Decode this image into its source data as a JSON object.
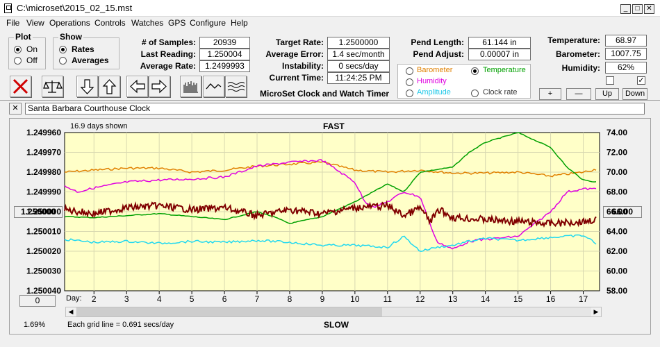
{
  "window": {
    "title": "C:\\microset\\2015_02_15.mst",
    "min": "_",
    "max": "□",
    "close": "✕"
  },
  "menu": [
    "File",
    "View",
    "Operations",
    "Controls",
    "Watches",
    "GPS",
    "Configure",
    "Help"
  ],
  "plot": {
    "title": "Plot",
    "on": "On",
    "off": "Off"
  },
  "show": {
    "title": "Show",
    "rates": "Rates",
    "averages": "Averages"
  },
  "stats": {
    "samples_label": "# of Samples:",
    "samples": "20939",
    "last_label": "Last Reading:",
    "last": "1.250004",
    "avg_label": "Average Rate:",
    "avg": "1.2499993",
    "target_label": "Target Rate:",
    "target": "1.2500000",
    "avgerr_label": "Average Error:",
    "avgerr": "1.4 sec/month",
    "instab_label": "Instability:",
    "instab": "0 secs/day",
    "time_label": "Current Time:",
    "time": "11:24:25 PM",
    "pendlen_label": "Pend Length:",
    "pendlen": "61.144 in",
    "pendadj_label": "Pend Adjust:",
    "pendadj": "0.00007 in",
    "temp_label": "Temperature:",
    "temp": "68.97",
    "baro_label": "Barometer:",
    "baro": "1007.75",
    "hum_label": "Humidity:",
    "hum": "62%"
  },
  "app_name": "MicroSet Clock and Watch Timer",
  "sensors": {
    "barometer": "Barometer",
    "temperature": "Temperature",
    "humidity": "Humidity",
    "amplitude": "Amplitude",
    "clockrate": "Clock rate"
  },
  "adjust": {
    "plus": "+",
    "minus": "—",
    "up": "Up",
    "down": "Down"
  },
  "watch_name": "Santa Barbara Courthouse Clock",
  "clear_btn": "✕",
  "chart_labels": {
    "days_shown": "16.9 days shown",
    "fast": "FAST",
    "slow": "SLOW",
    "grid_note": "Each grid line = 0.691 secs/day",
    "pct": "1.69%",
    "day_label": "Day:",
    "left_btn": "1.250000",
    "right_btn": "66.00",
    "zero_btn": "0"
  },
  "colors": {
    "barometer": "#e08000",
    "temperature": "#00a000",
    "humidity": "#e000e0",
    "amplitude": "#20d8f0",
    "rate": "#800000",
    "plot_bg": "#ffffc8"
  },
  "chart_data": {
    "type": "line",
    "left_axis": {
      "ticks": [
        "1.249960",
        "1.249970",
        "1.249980",
        "1.249990",
        "1.250000",
        "1.250010",
        "1.250020",
        "1.250030",
        "1.250040"
      ],
      "ylim": [
        1.24996,
        1.25004
      ],
      "inverted": true
    },
    "right_axis": {
      "ticks": [
        "74.00",
        "72.00",
        "70.00",
        "68.00",
        "66.00",
        "64.00",
        "62.00",
        "60.00",
        "58.00"
      ],
      "ylim": [
        58,
        74
      ]
    },
    "x_ticks": [
      2,
      3,
      4,
      5,
      6,
      7,
      8,
      9,
      10,
      11,
      12,
      13,
      14,
      15,
      16,
      17
    ],
    "xlim": [
      1.1,
      17.5
    ],
    "series": [
      {
        "key": "barometer",
        "color": "#e08000",
        "x": [
          1.1,
          2,
          3,
          4,
          5,
          6,
          7,
          8,
          9,
          10,
          11,
          12,
          13,
          14,
          15,
          16,
          17,
          17.4
        ],
        "y": [
          70.0,
          70.2,
          70.4,
          70.4,
          70.0,
          70.2,
          70.6,
          70.8,
          71.0,
          70.2,
          70.0,
          70.2,
          69.9,
          69.9,
          70.0,
          69.6,
          70.0,
          70.3
        ]
      },
      {
        "key": "temperature",
        "color": "#00a000",
        "x": [
          1.1,
          2,
          3,
          4,
          5,
          6,
          7,
          7.5,
          8,
          9,
          10,
          11,
          11.5,
          12,
          13,
          13.5,
          14,
          15,
          16,
          16.5,
          17,
          17.4
        ],
        "y": [
          65.5,
          65.4,
          65.6,
          65.8,
          65.5,
          65.2,
          66.0,
          65.5,
          64.8,
          65.5,
          67.0,
          68.8,
          68.0,
          70.0,
          70.5,
          72.0,
          73.0,
          74.0,
          72.5,
          70.5,
          69.2,
          69.0
        ]
      },
      {
        "key": "humidity",
        "color": "#e000e0",
        "x": [
          1.1,
          1.5,
          2,
          3,
          4,
          5,
          6,
          7,
          8,
          9,
          10,
          10.3,
          10.6,
          11,
          11.5,
          12,
          12.5,
          13,
          13.5,
          14,
          15,
          16,
          16.5,
          17,
          17.4
        ],
        "y": [
          68.6,
          68.0,
          68.4,
          69.0,
          69.2,
          69.3,
          69.5,
          70.6,
          71.0,
          71.2,
          69.0,
          67.0,
          66.5,
          67.0,
          68.0,
          67.5,
          63.0,
          62.2,
          63.0,
          63.2,
          63.5,
          66.0,
          68.0,
          68.3,
          68.3
        ]
      },
      {
        "key": "amplitude",
        "color": "#20d8f0",
        "x": [
          1.1,
          2,
          3,
          4,
          5,
          6,
          7,
          8,
          9,
          10,
          11,
          11.5,
          12,
          12.5,
          13,
          13.5,
          14,
          15,
          16,
          17,
          17.4
        ],
        "y": [
          63.2,
          62.9,
          63.0,
          62.8,
          63.0,
          62.9,
          63.1,
          62.9,
          62.6,
          62.6,
          62.4,
          63.5,
          62.0,
          62.4,
          62.6,
          63.0,
          63.3,
          63.1,
          63.4,
          63.6,
          62.8
        ]
      },
      {
        "key": "rate",
        "color": "#800000",
        "x": [
          1.1,
          2,
          3,
          4,
          5,
          6,
          7,
          8,
          9,
          10,
          11,
          11.5,
          12,
          12.3,
          12.6,
          13,
          14,
          15,
          16,
          17,
          17.4
        ],
        "y": [
          1.249999,
          1.250001,
          1.249998,
          1.249997,
          1.249999,
          1.249998,
          1.250002,
          1.249999,
          1.250001,
          1.249998,
          1.249997,
          1.250002,
          1.249998,
          1.250005,
          1.249999,
          1.250003,
          1.250004,
          1.250005,
          1.250006,
          1.250005,
          1.250004
        ]
      }
    ]
  }
}
